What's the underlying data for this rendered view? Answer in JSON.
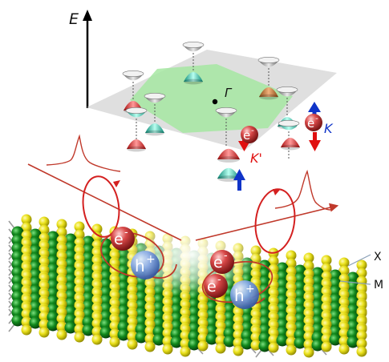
{
  "labels": {
    "energy_axis": "E",
    "gamma_point": "Γ",
    "k_valley": "K",
    "k_prime_valley": "K'",
    "chalcogen_atom": "X",
    "metal_atom": "M",
    "electron": "e",
    "electron_charge": "-",
    "hole": "h",
    "hole_charge": "+"
  },
  "colors": {
    "hexagon_fill": "#a6e7a2",
    "plane_fill": "#dcdcdc",
    "laser_beam": "#c0392b",
    "circular_polarization": "#d42020",
    "spin_up_arrow": "#1034c8",
    "spin_down_arrow": "#e01010",
    "metal_atom": "#0b6a12",
    "chalcogen_atom": "#e6e010",
    "electron": "#c23030",
    "hole": "#5a86d6"
  }
}
